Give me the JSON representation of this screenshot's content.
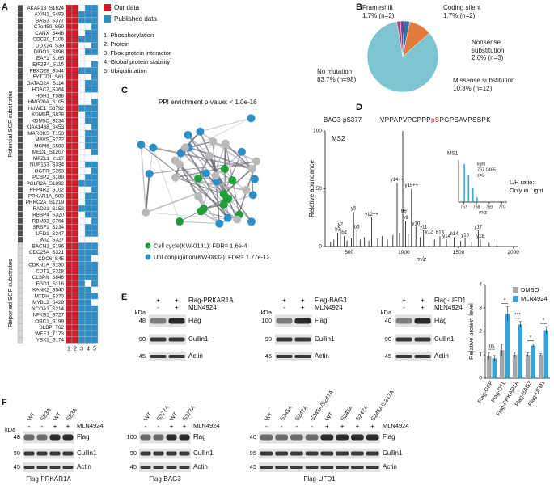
{
  "panel_letters": [
    "A",
    "B",
    "C",
    "D",
    "E",
    "F"
  ],
  "heatmap": {
    "groups": [
      {
        "label": "Potential SCF substrates",
        "rows": [
          {
            "name": "AKAP13_S1624",
            "cells": [
              1,
              1,
              0,
              1,
              1
            ]
          },
          {
            "name": "AXIN1_S493",
            "cells": [
              1,
              1,
              1,
              1,
              1
            ]
          },
          {
            "name": "BAG3_S377",
            "cells": [
              1,
              1,
              1,
              1,
              1
            ]
          },
          {
            "name": "C7orf50_S59",
            "cells": [
              1,
              1,
              0,
              0,
              1
            ]
          },
          {
            "name": "CANX_S446",
            "cells": [
              1,
              1,
              0,
              1,
              1
            ]
          },
          {
            "name": "CDC20_T106",
            "cells": [
              1,
              1,
              1,
              1,
              1
            ]
          },
          {
            "name": "DDX24_S39",
            "cells": [
              1,
              1,
              0,
              0,
              1
            ]
          },
          {
            "name": "DIDO1_S898",
            "cells": [
              1,
              1,
              0,
              1,
              1
            ]
          },
          {
            "name": "EAF1_S165",
            "cells": [
              1,
              1,
              0,
              0,
              0
            ]
          },
          {
            "name": "EIF2B4_S115",
            "cells": [
              1,
              1,
              0,
              0,
              1
            ]
          },
          {
            "name": "FBXO28_S344",
            "cells": [
              1,
              1,
              1,
              1,
              1
            ]
          },
          {
            "name": "FYTTD1_S61",
            "cells": [
              1,
              1,
              0,
              0,
              1
            ]
          },
          {
            "name": "GATAD2A_S114",
            "cells": [
              1,
              1,
              0,
              1,
              1
            ]
          },
          {
            "name": "HDAC2_S364",
            "cells": [
              1,
              1,
              0,
              1,
              1
            ]
          },
          {
            "name": "HGH1_T388",
            "cells": [
              1,
              1,
              0,
              0,
              0
            ]
          },
          {
            "name": "HMG20A_S105",
            "cells": [
              1,
              1,
              0,
              0,
              1
            ]
          },
          {
            "name": "HUWE1_S3792",
            "cells": [
              1,
              1,
              1,
              1,
              1
            ]
          },
          {
            "name": "KDM5B_S828",
            "cells": [
              1,
              1,
              0,
              1,
              1
            ]
          },
          {
            "name": "KDM5C_S234",
            "cells": [
              1,
              1,
              0,
              1,
              1
            ]
          },
          {
            "name": "KIAA1468_S453",
            "cells": [
              1,
              1,
              0,
              0,
              1
            ]
          },
          {
            "name": "MARCKS_T150",
            "cells": [
              1,
              1,
              0,
              1,
              1
            ]
          },
          {
            "name": "MAVS_S222",
            "cells": [
              1,
              1,
              0,
              1,
              1
            ]
          },
          {
            "name": "MCM6_S583",
            "cells": [
              1,
              1,
              0,
              1,
              1
            ]
          },
          {
            "name": "MED1_S1207",
            "cells": [
              1,
              1,
              0,
              0,
              1
            ]
          },
          {
            "name": "MPZL1_Y117",
            "cells": [
              1,
              1,
              0,
              0,
              0
            ]
          },
          {
            "name": "NUP153_S334",
            "cells": [
              1,
              1,
              0,
              1,
              1
            ]
          },
          {
            "name": "OGFR_S263",
            "cells": [
              1,
              1,
              0,
              0,
              1
            ]
          },
          {
            "name": "PCBP2_S189",
            "cells": [
              1,
              1,
              0,
              1,
              1
            ]
          },
          {
            "name": "POLR2A_S1892",
            "cells": [
              1,
              1,
              1,
              1,
              1
            ]
          },
          {
            "name": "PPP4R2_S102",
            "cells": [
              1,
              1,
              0,
              0,
              1
            ]
          },
          {
            "name": "PRKAR1A_S83",
            "cells": [
              1,
              1,
              0,
              1,
              1
            ]
          },
          {
            "name": "PRRC2A_S1219",
            "cells": [
              1,
              1,
              0,
              1,
              1
            ]
          },
          {
            "name": "RAD21_S153",
            "cells": [
              1,
              1,
              1,
              1,
              1
            ]
          },
          {
            "name": "RBBP4_S320",
            "cells": [
              1,
              1,
              0,
              1,
              1
            ]
          },
          {
            "name": "RBM33_S764",
            "cells": [
              1,
              1,
              0,
              0,
              1
            ]
          },
          {
            "name": "SRSF1_S234",
            "cells": [
              1,
              1,
              0,
              1,
              1
            ]
          },
          {
            "name": "UFD1_S247",
            "cells": [
              1,
              1,
              0,
              1,
              1
            ]
          },
          {
            "name": "WIZ_S327",
            "cells": [
              1,
              1,
              0,
              0,
              0
            ]
          }
        ]
      },
      {
        "label": "Reported SCF substrates",
        "rows": [
          {
            "name": "BACH1_S196",
            "cells": [
              1,
              1,
              1,
              1,
              1
            ]
          },
          {
            "name": "CDC25A_S321",
            "cells": [
              1,
              1,
              1,
              1,
              1
            ]
          },
          {
            "name": "CDC6_S45",
            "cells": [
              1,
              1,
              1,
              1,
              0
            ]
          },
          {
            "name": "CDKN1A_S130",
            "cells": [
              1,
              1,
              1,
              1,
              1
            ]
          },
          {
            "name": "CDT1_S318",
            "cells": [
              1,
              1,
              1,
              1,
              1
            ]
          },
          {
            "name": "CLSPN_S846",
            "cells": [
              1,
              1,
              1,
              1,
              1
            ]
          },
          {
            "name": "FGD1_S116",
            "cells": [
              1,
              1,
              1,
              0,
              1
            ]
          },
          {
            "name": "KANK2_S540",
            "cells": [
              1,
              1,
              1,
              1,
              0
            ]
          },
          {
            "name": "MTDH_S370",
            "cells": [
              1,
              1,
              1,
              1,
              1
            ]
          },
          {
            "name": "MYBL2_S428",
            "cells": [
              1,
              1,
              1,
              1,
              0
            ]
          },
          {
            "name": "NCOA3_S214",
            "cells": [
              1,
              1,
              1,
              1,
              1
            ]
          },
          {
            "name": "NFKB1_S727",
            "cells": [
              1,
              1,
              1,
              1,
              1
            ]
          },
          {
            "name": "ORC1_S199",
            "cells": [
              1,
              1,
              1,
              1,
              1
            ]
          },
          {
            "name": "SLBP_T62",
            "cells": [
              1,
              1,
              1,
              1,
              1
            ]
          },
          {
            "name": "WEE1_T173",
            "cells": [
              1,
              1,
              1,
              1,
              1
            ]
          },
          {
            "name": "YBX1_S174",
            "cells": [
              1,
              1,
              1,
              1,
              1
            ]
          }
        ]
      }
    ],
    "columns": [
      "1",
      "2",
      "3",
      "4",
      "5"
    ],
    "legend": [
      {
        "label": "Our data",
        "color": "#c8202b"
      },
      {
        "label": "Published data",
        "color": "#2e8fc6"
      }
    ],
    "notes": [
      {
        "text": "1. Phosphorylation",
        "color": "#c8202b"
      },
      {
        "text": "2. Protein",
        "color": "#c8202b"
      },
      {
        "text": "3. Fbox protein interactor",
        "color": "#2e8fc6"
      },
      {
        "text": "4. Global protein stability",
        "color": "#2e8fc6"
      },
      {
        "text": "5. Ubiquitination",
        "color": "#2e8fc6"
      }
    ]
  },
  "network": {
    "title": "PPI enrichment  p-value: < 1.0e-16",
    "legend": [
      {
        "label": "Cell cycle(KW-0131): FDR= 1.6e-4",
        "color": "#1f9e3a"
      },
      {
        "label": "Ubl conjugation(KW-0832): FDR= 1.77e-12",
        "color": "#2e8fc6"
      }
    ]
  },
  "peptide": {
    "name": "BAG3-pS377",
    "sequence_before": "VPPAPVPCPPP",
    "site": "pS",
    "site_color": "#d62020",
    "sequence_after": "PGPSAVPSSPK"
  },
  "chart_data": [
    {
      "type": "pie",
      "categories": [
        "Frameshift",
        "Coding silent",
        "Nonsense substitution",
        "Missense substitution",
        "No mutation"
      ],
      "values": [
        1.7,
        1.7,
        2.6,
        10.3,
        83.7
      ],
      "value_labels": [
        "1.7% (n=2)",
        "1.7% (n=2)",
        "2.6% (n=3)",
        "10.3% (n=12)",
        "83.7% (n=98)"
      ],
      "colors": [
        "#c23b78",
        "#6a4c93",
        "#3a6ea5",
        "#e07b39",
        "#7cc4cf"
      ]
    },
    {
      "type": "spectrum",
      "title": "MS2",
      "x": [
        330,
        360,
        395,
        420,
        455,
        480,
        520,
        540,
        570,
        600,
        640,
        680,
        705,
        760,
        800,
        850,
        900,
        938,
        960,
        990,
        1000,
        1015,
        1040,
        1070,
        1110,
        1150,
        1180,
        1230,
        1280,
        1330,
        1390,
        1460,
        1520,
        1560,
        1620,
        1680,
        1700,
        1780,
        1850
      ],
      "values": [
        4,
        6,
        12,
        16,
        9,
        5,
        7,
        30,
        14,
        6,
        8,
        5,
        25,
        7,
        9,
        6,
        10,
        55,
        12,
        100,
        28,
        22,
        11,
        50,
        17,
        8,
        14,
        10,
        6,
        9,
        6,
        8,
        5,
        7,
        4,
        14,
        6,
        3,
        2
      ],
      "peak_labels": [
        null,
        null,
        "b3",
        "y2",
        "b4",
        null,
        null,
        "y5",
        "b5",
        null,
        null,
        null,
        "y12++",
        null,
        null,
        null,
        null,
        "y14++",
        null,
        null,
        "b9",
        "y9",
        null,
        "y15++",
        "y10",
        null,
        "y11",
        "y12",
        null,
        "b13",
        "y14",
        "b14",
        null,
        "y16",
        null,
        "y17",
        "y18",
        null,
        null
      ],
      "color": "#111111",
      "xlim": [
        280,
        2040
      ],
      "xticks": [
        500,
        1000,
        1500,
        2000
      ],
      "ylim": [
        0,
        100
      ],
      "yticks": [
        0,
        50,
        100
      ],
      "x_label": "m/z",
      "y_label": "Relative abundance"
    },
    {
      "type": "spectrum",
      "title": "MS1",
      "x": [
        767.0465,
        767.38,
        767.72,
        768.05
      ],
      "values": [
        100,
        72,
        38,
        12
      ],
      "color": "#3ba3dc",
      "xlim": [
        766.6,
        770.4
      ],
      "xticks": [
        767,
        768,
        769,
        770
      ],
      "ylim": [
        0,
        110
      ],
      "x_label": "m/z",
      "annotations": [
        "light",
        "767.0465",
        "z=3"
      ],
      "ratio_label": "L/H ratio:",
      "ratio_value": "Only in Light",
      "ratio_color": "#e02020"
    },
    {
      "type": "bar",
      "categories": [
        "Flag-GFP",
        "Flag-DTL",
        "Flag-PRKAR1A",
        "Flag-BAG3",
        "Flag-UFD1"
      ],
      "series": [
        {
          "name": "DMSO",
          "color": "#a6a6a6",
          "values": [
            0.95,
            1.2,
            1.0,
            1.0,
            1.0
          ],
          "errors": [
            0.15,
            0.25,
            0.12,
            0.08,
            0.05
          ]
        },
        {
          "name": "MLN4924",
          "color": "#3ba3dc",
          "values": [
            0.85,
            2.75,
            2.3,
            1.4,
            2.05
          ],
          "errors": [
            0.12,
            0.3,
            0.12,
            0.06,
            0.15
          ]
        }
      ],
      "significance": [
        "ns",
        "*",
        "***",
        "*",
        "*"
      ],
      "ylim": [
        0,
        4
      ],
      "yticks": [
        0,
        1,
        2,
        3,
        4
      ],
      "y_label": "Relative protein level",
      "legend": "upper right"
    }
  ],
  "blots_e": [
    {
      "conditions": [
        {
          "label": "Flag-PRKAR1A",
          "signs": [
            "+",
            "+"
          ]
        },
        {
          "label": "MLN4924",
          "signs": [
            "-",
            "+"
          ]
        }
      ],
      "unit": "kDa",
      "rows": [
        {
          "marker": "48",
          "label": "Flag"
        },
        {
          "marker": "90",
          "label": "Cullin1"
        },
        {
          "marker": "45",
          "label": "Actin"
        }
      ]
    },
    {
      "conditions": [
        {
          "label": "Flag-BAG3",
          "signs": [
            "+",
            "+"
          ]
        },
        {
          "label": "MLN4924",
          "signs": [
            "-",
            "+"
          ]
        }
      ],
      "unit": "kDa",
      "rows": [
        {
          "marker": "100",
          "label": "Flag"
        },
        {
          "marker": "90",
          "label": "Cullin1"
        },
        {
          "marker": "45",
          "label": "Actin"
        }
      ]
    },
    {
      "conditions": [
        {
          "label": "Flag-UFD1",
          "signs": [
            "+",
            "+"
          ]
        },
        {
          "label": "MLN4924",
          "signs": [
            "-",
            "+"
          ]
        }
      ],
      "unit": "kDa",
      "rows": [
        {
          "marker": "40",
          "label": "Flag"
        },
        {
          "marker": "90",
          "label": "Cullin1"
        },
        {
          "marker": "45",
          "label": "Actin"
        }
      ]
    }
  ],
  "blots_f": [
    {
      "lanes": [
        "WT",
        "S83A",
        "WT",
        "S83A"
      ],
      "treatment": {
        "label": "MLN4924",
        "signs": [
          "-",
          "-",
          "+",
          "+"
        ]
      },
      "unit": "kDa",
      "rows": [
        {
          "marker": "48",
          "label": "Flag"
        },
        {
          "marker": "90",
          "label": "Cullin1"
        },
        {
          "marker": "45",
          "label": "Actin"
        }
      ],
      "caption": "Flag-PRKAR1A"
    },
    {
      "lanes": [
        "WT",
        "S377A",
        "WT",
        "S377A"
      ],
      "treatment": {
        "label": "MLN4924",
        "signs": [
          "-",
          "-",
          "+",
          "+"
        ]
      },
      "rows": [
        {
          "marker": "100",
          "label": "Flag"
        },
        {
          "marker": "90",
          "label": "Cullin1"
        },
        {
          "marker": "45",
          "label": "Actin"
        }
      ],
      "caption": "Flag-BAG3"
    },
    {
      "lanes": [
        "WT",
        "S245A",
        "S247A",
        "S245A/S247A",
        "WT",
        "S245A",
        "S247A",
        "S245A/S247A"
      ],
      "treatment": {
        "label": "MLN4924",
        "signs": [
          "-",
          "-",
          "-",
          "-",
          "+",
          "+",
          "+",
          "+"
        ]
      },
      "rows": [
        {
          "marker": "40",
          "label": "Flag"
        },
        {
          "marker": "95",
          "label": "Cullin1"
        },
        {
          "marker": "45",
          "label": "Actin"
        }
      ],
      "caption": "Flag-UFD1"
    }
  ]
}
